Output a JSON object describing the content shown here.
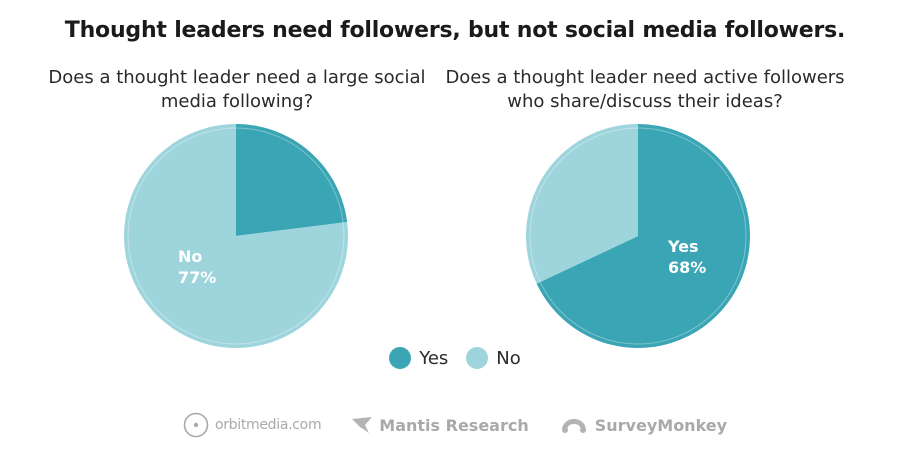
{
  "title": "Thought leaders need followers, but not social media followers.",
  "colors": {
    "yes": "#3aa5b4",
    "no": "#9ed5dd",
    "logo_gray": "#a9a9a9"
  },
  "chart_data": [
    {
      "type": "pie",
      "title": "Does a thought leader need a large social media following?",
      "categories": [
        "Yes",
        "No"
      ],
      "values": [
        23,
        77
      ],
      "labels": [
        {
          "category": "No",
          "name": "No",
          "value": "77%"
        }
      ]
    },
    {
      "type": "pie",
      "title": "Does a thought leader need active followers who share/discuss their ideas?",
      "categories": [
        "Yes",
        "No"
      ],
      "values": [
        68,
        32
      ],
      "labels": [
        {
          "category": "Yes",
          "name": "Yes",
          "value": "68%"
        }
      ]
    }
  ],
  "legend": [
    {
      "label": "Yes",
      "color": "#3aa5b4"
    },
    {
      "label": "No",
      "color": "#9ed5dd"
    }
  ],
  "footer": {
    "logos": [
      {
        "name": "orbitmedia.com",
        "icon": "orbit-logo-icon"
      },
      {
        "name": "Mantis Research",
        "icon": "mantis-logo-icon"
      },
      {
        "name": "SurveyMonkey",
        "icon": "surveymonkey-logo-icon"
      }
    ]
  }
}
